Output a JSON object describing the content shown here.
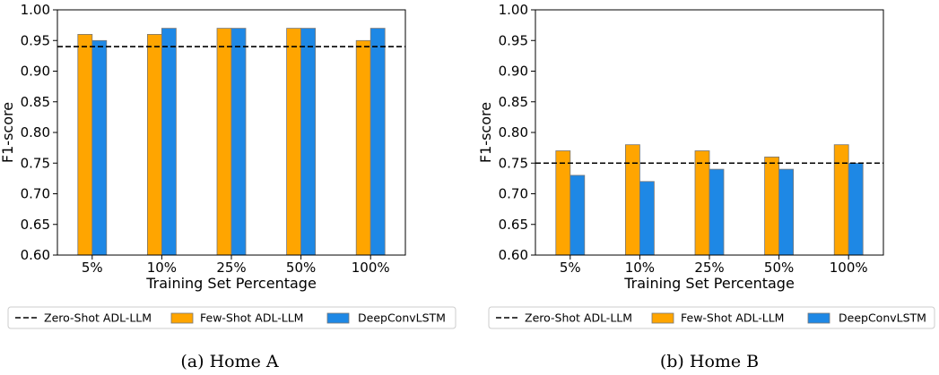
{
  "chart_data": [
    {
      "type": "bar",
      "caption": "(a) Home A",
      "xlabel": "Training Set Percentage",
      "ylabel": "F1-score",
      "categories": [
        "5%",
        "10%",
        "25%",
        "50%",
        "100%"
      ],
      "ylim": [
        0.6,
        1.0
      ],
      "yticks": [
        "0.60",
        "0.65",
        "0.70",
        "0.75",
        "0.80",
        "0.85",
        "0.90",
        "0.95",
        "1.00"
      ],
      "reference_line": {
        "name": "Zero-Shot ADL-LLM",
        "value": 0.94,
        "style": "dashed",
        "color": "#000000"
      },
      "series": [
        {
          "name": "Few-Shot ADL-LLM",
          "color": "#FFA500",
          "values": [
            0.96,
            0.96,
            0.97,
            0.97,
            0.95
          ]
        },
        {
          "name": "DeepConvLSTM",
          "color": "#1E88E5",
          "values": [
            0.95,
            0.97,
            0.97,
            0.97,
            0.97
          ]
        }
      ],
      "legend": [
        "Zero-Shot ADL-LLM",
        "Few-Shot ADL-LLM",
        "DeepConvLSTM"
      ],
      "legend_position": "below"
    },
    {
      "type": "bar",
      "caption": "(b) Home B",
      "xlabel": "Training Set Percentage",
      "ylabel": "F1-score",
      "categories": [
        "5%",
        "10%",
        "25%",
        "50%",
        "100%"
      ],
      "ylim": [
        0.6,
        1.0
      ],
      "yticks": [
        "0.60",
        "0.65",
        "0.70",
        "0.75",
        "0.80",
        "0.85",
        "0.90",
        "0.95",
        "1.00"
      ],
      "reference_line": {
        "name": "Zero-Shot ADL-LLM",
        "value": 0.75,
        "style": "dashed",
        "color": "#000000"
      },
      "series": [
        {
          "name": "Few-Shot ADL-LLM",
          "color": "#FFA500",
          "values": [
            0.77,
            0.78,
            0.77,
            0.76,
            0.78
          ]
        },
        {
          "name": "DeepConvLSTM",
          "color": "#1E88E5",
          "values": [
            0.73,
            0.72,
            0.74,
            0.74,
            0.75
          ]
        }
      ],
      "legend": [
        "Zero-Shot ADL-LLM",
        "Few-Shot ADL-LLM",
        "DeepConvLSTM"
      ],
      "legend_position": "below"
    }
  ]
}
